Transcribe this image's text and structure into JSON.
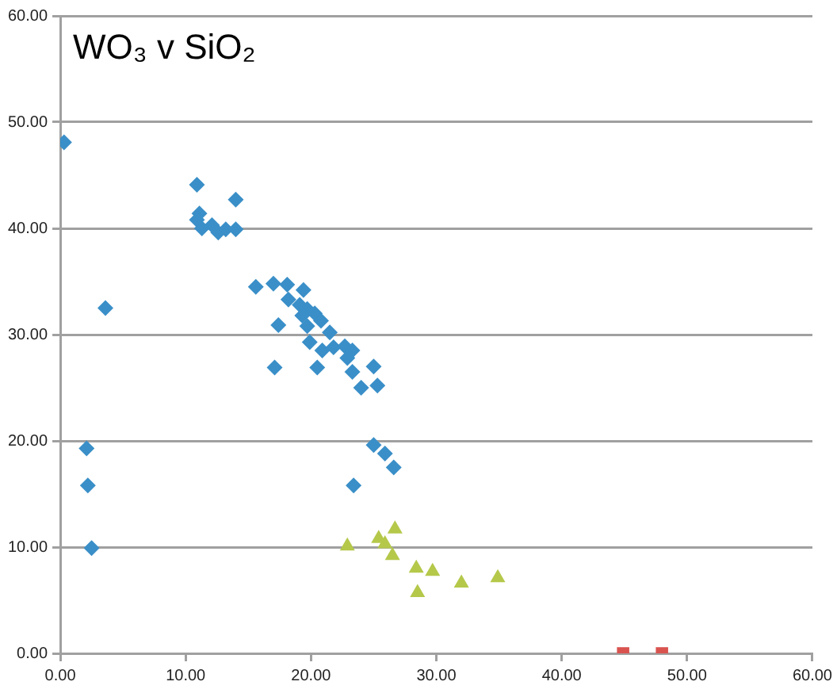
{
  "chart_data": {
    "type": "scatter",
    "title": "WO₃ v SiO₂",
    "xlim": [
      0,
      60
    ],
    "ylim": [
      0,
      60
    ],
    "xticks": [
      {
        "value": 0,
        "label": "0.00"
      },
      {
        "value": 10,
        "label": "10.00"
      },
      {
        "value": 20,
        "label": "20.00"
      },
      {
        "value": 30,
        "label": "30.00"
      },
      {
        "value": 40,
        "label": "40.00"
      },
      {
        "value": 50,
        "label": "50.00"
      },
      {
        "value": 60,
        "label": "60.00"
      }
    ],
    "yticks": [
      {
        "value": 0,
        "label": "0.00"
      },
      {
        "value": 10,
        "label": "10.00"
      },
      {
        "value": 20,
        "label": "20.00"
      },
      {
        "value": 30,
        "label": "30.00"
      },
      {
        "value": 40,
        "label": "40.00"
      },
      {
        "value": 50,
        "label": "50.00"
      },
      {
        "value": 60,
        "label": "60.00"
      }
    ],
    "grid": "y",
    "legend": false,
    "series": [
      {
        "color": "#3a8fc8",
        "marker": "diamond",
        "x": [
          0.3,
          10.9,
          14.0,
          11.1,
          10.9,
          11.3,
          12.1,
          12.6,
          13.2,
          14.0,
          3.6,
          15.6,
          17.4,
          17.0,
          18.1,
          19.4,
          18.2,
          19.1,
          19.7,
          20.3,
          19.3,
          20.8,
          19.7,
          19.9,
          21.5,
          20.9,
          21.8,
          22.7,
          23.3,
          22.9,
          23.3,
          17.1,
          20.5,
          25.0,
          24.0,
          25.3,
          25.0,
          25.9,
          26.6,
          23.4,
          2.1,
          2.2,
          2.5
        ],
        "values": [
          48.1,
          44.1,
          42.7,
          41.4,
          40.8,
          40.0,
          40.3,
          39.6,
          39.9,
          39.9,
          32.5,
          34.5,
          30.9,
          34.8,
          34.7,
          34.2,
          33.3,
          32.8,
          32.4,
          32.0,
          31.8,
          31.3,
          30.8,
          29.3,
          30.2,
          28.5,
          28.8,
          28.9,
          28.5,
          27.8,
          26.5,
          26.9,
          26.9,
          27.0,
          25.0,
          25.2,
          19.6,
          18.8,
          17.5,
          15.8,
          19.3,
          15.8,
          9.9
        ]
      },
      {
        "color": "#b5c84a",
        "marker": "triangle",
        "x": [
          22.9,
          25.4,
          25.9,
          26.7,
          26.5,
          28.4,
          29.7,
          28.5,
          32.0,
          34.9
        ],
        "values": [
          10.1,
          10.8,
          10.3,
          11.7,
          9.2,
          8.0,
          7.7,
          5.7,
          6.6,
          7.1
        ]
      },
      {
        "color": "#d9534f",
        "marker": "square",
        "x": [
          44.9,
          48.0
        ],
        "values": [
          0,
          0
        ]
      }
    ]
  }
}
